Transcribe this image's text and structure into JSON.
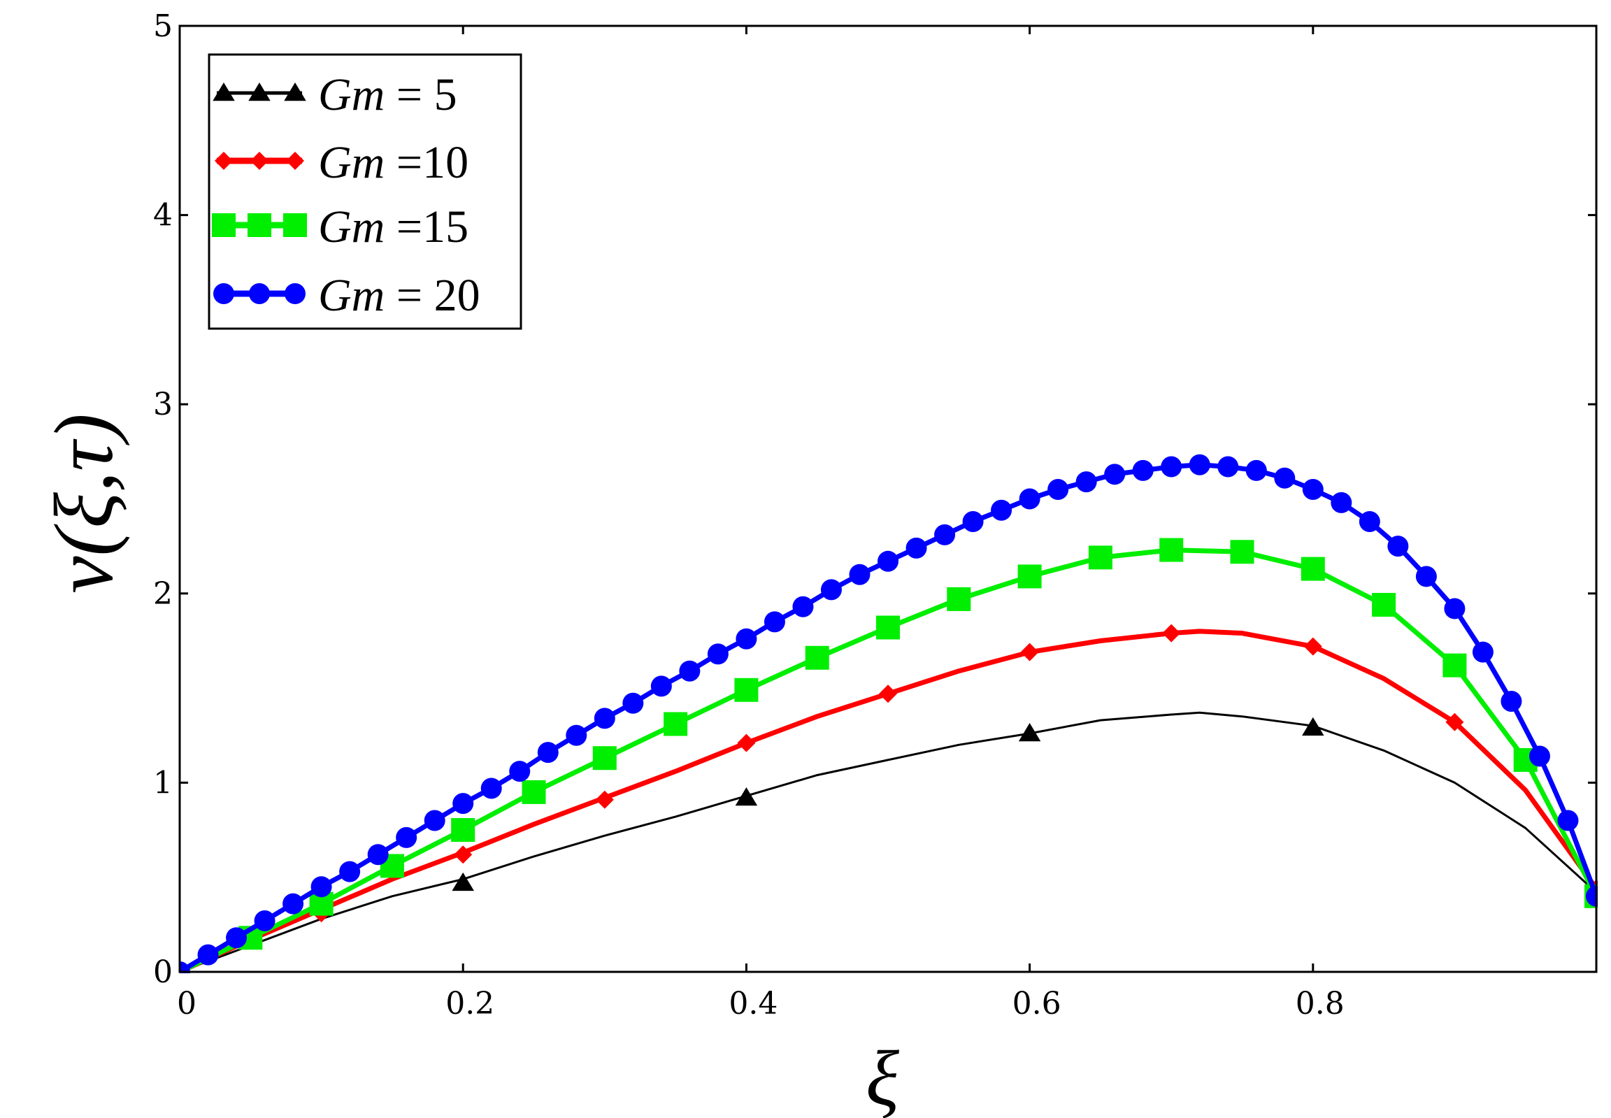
{
  "chart_data": {
    "type": "line",
    "title": "",
    "xlabel": "ξ",
    "ylabel": "v(ξ,τ)",
    "xlim": [
      0,
      1
    ],
    "ylim": [
      0,
      5
    ],
    "xticks": [
      "0",
      "0.2",
      "0.4",
      "0.6",
      "0.8"
    ],
    "yticks": [
      "0",
      "1",
      "2",
      "3",
      "4",
      "5"
    ],
    "legend_position": "top-left",
    "series": [
      {
        "name": "Gm = 5",
        "label_var": "Gm",
        "label_eq": " = ",
        "label_val": "5",
        "color": "#000000",
        "marker": "triangle",
        "x": [
          0,
          0.05,
          0.1,
          0.15,
          0.2,
          0.25,
          0.3,
          0.35,
          0.4,
          0.45,
          0.5,
          0.55,
          0.6,
          0.65,
          0.7,
          0.72,
          0.75,
          0.8,
          0.85,
          0.9,
          0.95,
          1.0
        ],
        "y": [
          0,
          0.14,
          0.28,
          0.4,
          0.49,
          0.61,
          0.72,
          0.82,
          0.93,
          1.04,
          1.12,
          1.2,
          1.26,
          1.33,
          1.36,
          1.37,
          1.35,
          1.3,
          1.17,
          1.0,
          0.76,
          0.42
        ],
        "marker_x": [
          0.2,
          0.4,
          0.6,
          0.8
        ],
        "marker_y": [
          0.47,
          0.92,
          1.26,
          1.29
        ]
      },
      {
        "name": "Gm = 10",
        "label_var": "Gm",
        "label_eq": " =",
        "label_val": "10",
        "color": "#ff0000",
        "marker": "diamond",
        "x": [
          0,
          0.05,
          0.1,
          0.15,
          0.2,
          0.25,
          0.3,
          0.35,
          0.4,
          0.45,
          0.5,
          0.55,
          0.6,
          0.65,
          0.7,
          0.72,
          0.75,
          0.8,
          0.85,
          0.9,
          0.95,
          1.0
        ],
        "y": [
          0,
          0.17,
          0.33,
          0.49,
          0.63,
          0.78,
          0.92,
          1.06,
          1.21,
          1.35,
          1.47,
          1.59,
          1.69,
          1.75,
          1.79,
          1.8,
          1.79,
          1.72,
          1.55,
          1.32,
          0.96,
          0.44
        ],
        "marker_x": [
          0.1,
          0.2,
          0.3,
          0.4,
          0.5,
          0.6,
          0.7,
          0.8,
          0.9,
          1.0
        ],
        "marker_y": [
          0.31,
          0.62,
          0.91,
          1.21,
          1.47,
          1.69,
          1.79,
          1.72,
          1.32,
          0.44
        ]
      },
      {
        "name": "Gm = 15",
        "label_var": "Gm",
        "label_eq": " =",
        "label_val": "15",
        "color": "#00ee00",
        "marker": "square",
        "x": [
          0,
          0.05,
          0.1,
          0.15,
          0.2,
          0.25,
          0.3,
          0.35,
          0.4,
          0.45,
          0.5,
          0.55,
          0.6,
          0.65,
          0.7,
          0.75,
          0.8,
          0.85,
          0.9,
          0.95,
          1.0
        ],
        "y": [
          0,
          0.18,
          0.36,
          0.56,
          0.75,
          0.95,
          1.13,
          1.31,
          1.49,
          1.66,
          1.82,
          1.97,
          2.09,
          2.19,
          2.23,
          2.22,
          2.13,
          1.94,
          1.62,
          1.12,
          0.4
        ],
        "marker_x": [
          0.05,
          0.1,
          0.15,
          0.2,
          0.25,
          0.3,
          0.35,
          0.4,
          0.45,
          0.5,
          0.55,
          0.6,
          0.65,
          0.7,
          0.75,
          0.8,
          0.85,
          0.9,
          0.95,
          1.0
        ],
        "marker_y": [
          0.18,
          0.36,
          0.56,
          0.75,
          0.95,
          1.13,
          1.31,
          1.49,
          1.66,
          1.82,
          1.97,
          2.09,
          2.19,
          2.23,
          2.22,
          2.13,
          1.94,
          1.62,
          1.12,
          0.4
        ]
      },
      {
        "name": "Gm = 20",
        "label_var": "Gm",
        "label_eq": " = ",
        "label_val": "20",
        "color": "#0000ff",
        "marker": "circle",
        "x": [
          0,
          0.02,
          0.04,
          0.06,
          0.08,
          0.1,
          0.12,
          0.14,
          0.16,
          0.18,
          0.2,
          0.22,
          0.24,
          0.26,
          0.28,
          0.3,
          0.32,
          0.34,
          0.36,
          0.38,
          0.4,
          0.42,
          0.44,
          0.46,
          0.48,
          0.5,
          0.52,
          0.54,
          0.56,
          0.58,
          0.6,
          0.62,
          0.64,
          0.66,
          0.68,
          0.7,
          0.72,
          0.74,
          0.76,
          0.78,
          0.8,
          0.82,
          0.84,
          0.86,
          0.88,
          0.9,
          0.92,
          0.94,
          0.96,
          0.98,
          1.0
        ],
        "y": [
          0,
          0.09,
          0.18,
          0.27,
          0.36,
          0.45,
          0.53,
          0.62,
          0.71,
          0.8,
          0.89,
          0.97,
          1.06,
          1.16,
          1.25,
          1.34,
          1.42,
          1.51,
          1.59,
          1.68,
          1.76,
          1.85,
          1.93,
          2.02,
          2.1,
          2.17,
          2.24,
          2.31,
          2.38,
          2.44,
          2.5,
          2.55,
          2.59,
          2.63,
          2.65,
          2.67,
          2.68,
          2.67,
          2.65,
          2.61,
          2.55,
          2.48,
          2.38,
          2.25,
          2.09,
          1.92,
          1.69,
          1.43,
          1.14,
          0.8,
          0.4
        ],
        "marker_x": [
          0,
          0.02,
          0.04,
          0.06,
          0.08,
          0.1,
          0.12,
          0.14,
          0.16,
          0.18,
          0.2,
          0.22,
          0.24,
          0.26,
          0.28,
          0.3,
          0.32,
          0.34,
          0.36,
          0.38,
          0.4,
          0.42,
          0.44,
          0.46,
          0.48,
          0.5,
          0.52,
          0.54,
          0.56,
          0.58,
          0.6,
          0.62,
          0.64,
          0.66,
          0.68,
          0.7,
          0.72,
          0.74,
          0.76,
          0.78,
          0.8,
          0.82,
          0.84,
          0.86,
          0.88,
          0.9,
          0.92,
          0.94,
          0.96,
          0.98,
          1.0
        ],
        "marker_y": [
          0,
          0.09,
          0.18,
          0.27,
          0.36,
          0.45,
          0.53,
          0.62,
          0.71,
          0.8,
          0.89,
          0.97,
          1.06,
          1.16,
          1.25,
          1.34,
          1.42,
          1.51,
          1.59,
          1.68,
          1.76,
          1.85,
          1.93,
          2.02,
          2.1,
          2.17,
          2.24,
          2.31,
          2.38,
          2.44,
          2.5,
          2.55,
          2.59,
          2.63,
          2.65,
          2.67,
          2.68,
          2.67,
          2.65,
          2.61,
          2.55,
          2.48,
          2.38,
          2.25,
          2.09,
          1.92,
          1.69,
          1.43,
          1.14,
          0.8,
          0.4
        ]
      }
    ]
  }
}
